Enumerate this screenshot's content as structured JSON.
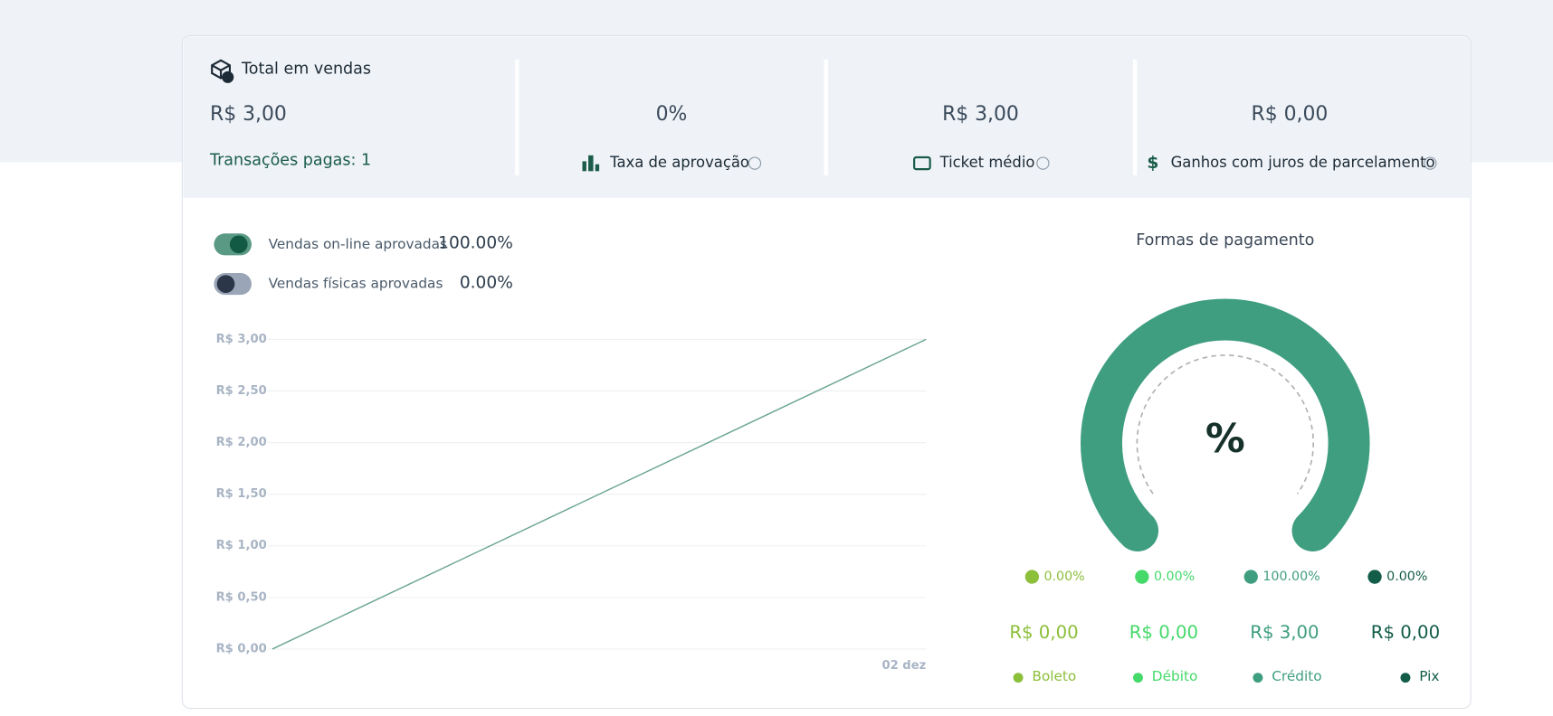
{
  "summary": {
    "total_title": "Total em vendas",
    "total_value": "R$ 3,00",
    "paid_transactions": "Transações pagas: 1",
    "cards": [
      {
        "value": "0%",
        "label": "Taxa de aprovação"
      },
      {
        "value": "R$ 3,00",
        "label": "Ticket médio"
      },
      {
        "value": "R$ 0,00",
        "label": "Ganhos com juros de parcelamento"
      }
    ]
  },
  "toggles": [
    {
      "label": "Vendas on-line aprovadas",
      "value": "100.00%",
      "on": true
    },
    {
      "label": "Vendas físicas aprovadas",
      "value": "0.00%",
      "on": false
    }
  ],
  "chart_data": {
    "type": "line",
    "categories": [
      null,
      "02 dez"
    ],
    "values": [
      0,
      3
    ],
    "color": "#6aa58e",
    "ylim": [
      0,
      3
    ],
    "yticks": [
      {
        "value": 0,
        "label": "R$ 0,00"
      },
      {
        "value": 0.5,
        "label": "R$ 0,50"
      },
      {
        "value": 1,
        "label": "R$ 1,00"
      },
      {
        "value": 1.5,
        "label": "R$ 1,50"
      },
      {
        "value": 2,
        "label": "R$ 2,00"
      },
      {
        "value": 2.5,
        "label": "R$ 2,50"
      },
      {
        "value": 3,
        "label": "R$ 3,00"
      }
    ],
    "grid": true
  },
  "payments": {
    "type": "gauge",
    "title": "Formas de pagamento",
    "center_label": "%",
    "names": [
      "Boleto",
      "Débito",
      "Crédito",
      "Pix"
    ],
    "colors": [
      "#8cbf3a",
      "#45d96a",
      "#3f9e80",
      "#125c48"
    ],
    "values": [
      0,
      0,
      100,
      0
    ],
    "value_labels": [
      "0.00%",
      "0.00%",
      "100.00%",
      "0.00%"
    ],
    "amounts": [
      0,
      0,
      3,
      0
    ],
    "amount_labels": [
      "R$ 0,00",
      "R$ 0,00",
      "R$ 3,00",
      "R$ 0,00"
    ]
  }
}
